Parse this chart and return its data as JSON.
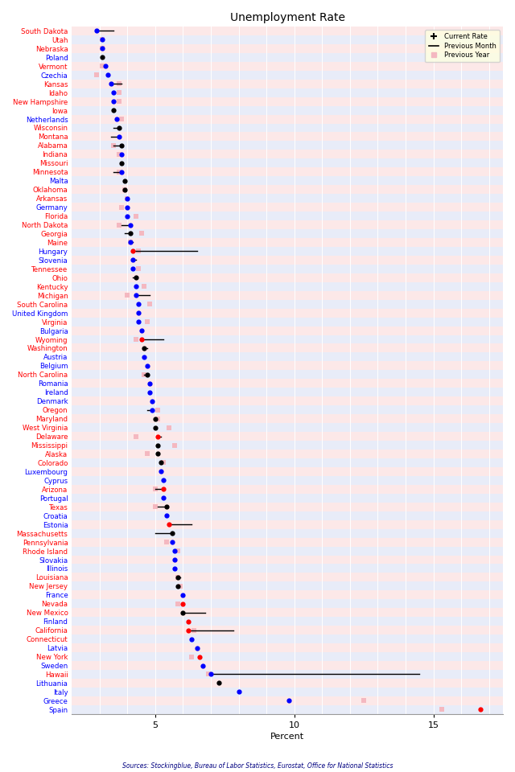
{
  "title": "Unemployment Rate",
  "xlabel": "Percent",
  "source_text": "Sources: Stockingblue, Bureau of Labor Statistics, Eurostat, Office for National Statistics",
  "countries": [
    "South Dakota",
    "Utah",
    "Nebraska",
    "Poland",
    "Vermont",
    "Czechia",
    "Kansas",
    "Idaho",
    "New Hampshire",
    "Iowa",
    "Netherlands",
    "Wisconsin",
    "Montana",
    "Alabama",
    "Indiana",
    "Missouri",
    "Minnesota",
    "Malta",
    "Oklahoma",
    "Arkansas",
    "Germany",
    "Florida",
    "North Dakota",
    "Georgia",
    "Maine",
    "Hungary",
    "Slovenia",
    "Tennessee",
    "Ohio",
    "Kentucky",
    "Michigan",
    "South Carolina",
    "United Kingdom",
    "Virginia",
    "Bulgaria",
    "Wyoming",
    "Washington",
    "Austria",
    "Belgium",
    "North Carolina",
    "Romania",
    "Ireland",
    "Denmark",
    "Oregon",
    "Maryland",
    "West Virginia",
    "Delaware",
    "Mississippi",
    "Alaska",
    "Colorado",
    "Luxembourg",
    "Cyprus",
    "Arizona",
    "Portugal",
    "Texas",
    "Croatia",
    "Estonia",
    "Massachusetts",
    "Pennsylvania",
    "Rhode Island",
    "Slovakia",
    "Illinois",
    "Louisiana",
    "New Jersey",
    "France",
    "Nevada",
    "New Mexico",
    "Finland",
    "California",
    "Connecticut",
    "Latvia",
    "New York",
    "Sweden",
    "Hawaii",
    "Lithuania",
    "Italy",
    "Greece",
    "Spain"
  ],
  "dot_colors": [
    "blue",
    "blue",
    "blue",
    "black",
    "blue",
    "blue",
    "blue",
    "blue",
    "blue",
    "black",
    "blue",
    "black",
    "blue",
    "black",
    "blue",
    "black",
    "blue",
    "black",
    "black",
    "blue",
    "blue",
    "blue",
    "blue",
    "black",
    "blue",
    "red",
    "blue",
    "blue",
    "black",
    "blue",
    "blue",
    "blue",
    "blue",
    "blue",
    "blue",
    "red",
    "black",
    "blue",
    "blue",
    "black",
    "blue",
    "blue",
    "blue",
    "blue",
    "black",
    "black",
    "red",
    "black",
    "black",
    "black",
    "blue",
    "blue",
    "red",
    "blue",
    "black",
    "blue",
    "red",
    "black",
    "blue",
    "blue",
    "blue",
    "blue",
    "black",
    "black",
    "blue",
    "red",
    "black",
    "red",
    "red",
    "blue",
    "blue",
    "red",
    "blue",
    "blue",
    "black",
    "blue",
    "blue",
    "red"
  ],
  "label_colors": [
    "red",
    "red",
    "red",
    "blue",
    "red",
    "blue",
    "red",
    "red",
    "red",
    "red",
    "blue",
    "red",
    "red",
    "red",
    "red",
    "red",
    "red",
    "blue",
    "red",
    "red",
    "blue",
    "red",
    "red",
    "red",
    "red",
    "blue",
    "blue",
    "red",
    "red",
    "red",
    "red",
    "red",
    "blue",
    "red",
    "blue",
    "red",
    "red",
    "blue",
    "blue",
    "red",
    "blue",
    "blue",
    "blue",
    "red",
    "red",
    "red",
    "red",
    "red",
    "red",
    "red",
    "blue",
    "blue",
    "red",
    "blue",
    "red",
    "blue",
    "blue",
    "red",
    "red",
    "red",
    "blue",
    "blue",
    "red",
    "red",
    "blue",
    "red",
    "red",
    "blue",
    "red",
    "red",
    "blue",
    "red",
    "blue",
    "red",
    "blue",
    "blue",
    "blue",
    "blue"
  ],
  "current_rate": [
    2.9,
    3.1,
    3.1,
    3.1,
    3.2,
    3.3,
    3.4,
    3.5,
    3.5,
    3.5,
    3.6,
    3.7,
    3.7,
    3.8,
    3.8,
    3.8,
    3.8,
    3.9,
    3.9,
    4.0,
    4.0,
    4.0,
    4.1,
    4.1,
    4.1,
    4.2,
    4.2,
    4.2,
    4.3,
    4.3,
    4.3,
    4.4,
    4.4,
    4.4,
    4.5,
    4.5,
    4.6,
    4.6,
    4.7,
    4.7,
    4.8,
    4.8,
    4.9,
    4.9,
    5.0,
    5.0,
    5.1,
    5.1,
    5.1,
    5.2,
    5.2,
    5.3,
    5.3,
    5.3,
    5.4,
    5.4,
    5.5,
    5.6,
    5.6,
    5.7,
    5.7,
    5.7,
    5.8,
    5.8,
    6.0,
    6.0,
    6.0,
    6.2,
    6.2,
    6.3,
    6.5,
    6.6,
    6.7,
    7.0,
    7.3,
    8.0,
    9.8,
    16.7
  ],
  "prev_month": [
    3.5,
    null,
    null,
    null,
    null,
    null,
    3.8,
    null,
    null,
    null,
    null,
    3.5,
    3.4,
    3.5,
    null,
    null,
    3.5,
    null,
    null,
    null,
    null,
    null,
    3.8,
    3.9,
    4.2,
    6.5,
    4.3,
    null,
    4.2,
    null,
    4.8,
    null,
    null,
    null,
    null,
    5.3,
    4.7,
    null,
    null,
    4.6,
    null,
    null,
    null,
    4.7,
    null,
    null,
    5.2,
    null,
    null,
    null,
    null,
    null,
    5.0,
    null,
    5.1,
    null,
    6.3,
    5.0,
    5.6,
    null,
    null,
    null,
    5.9,
    null,
    null,
    null,
    6.8,
    null,
    7.8,
    null,
    null,
    null,
    null,
    14.5,
    null,
    null,
    null,
    null
  ],
  "prev_year": [
    null,
    3.1,
    3.1,
    null,
    3.1,
    2.9,
    3.7,
    3.7,
    3.7,
    null,
    3.8,
    null,
    null,
    3.5,
    3.7,
    null,
    3.7,
    null,
    3.9,
    4.0,
    3.8,
    4.3,
    3.7,
    4.5,
    4.1,
    4.4,
    null,
    4.4,
    null,
    4.6,
    4.0,
    4.8,
    null,
    4.7,
    null,
    4.3,
    null,
    null,
    null,
    4.6,
    null,
    null,
    null,
    5.1,
    5.1,
    5.5,
    4.3,
    5.7,
    4.7,
    5.3,
    null,
    null,
    5.0,
    null,
    5.0,
    null,
    null,
    null,
    5.4,
    5.8,
    null,
    null,
    5.8,
    5.9,
    null,
    5.8,
    null,
    null,
    6.4,
    null,
    null,
    6.3,
    null,
    6.9,
    null,
    null,
    12.5,
    15.3
  ],
  "bg_colors": [
    "#fce8e8",
    "#e8ecf8"
  ],
  "xlim": [
    2.0,
    17.5
  ],
  "xticks": [
    5,
    10,
    15
  ]
}
